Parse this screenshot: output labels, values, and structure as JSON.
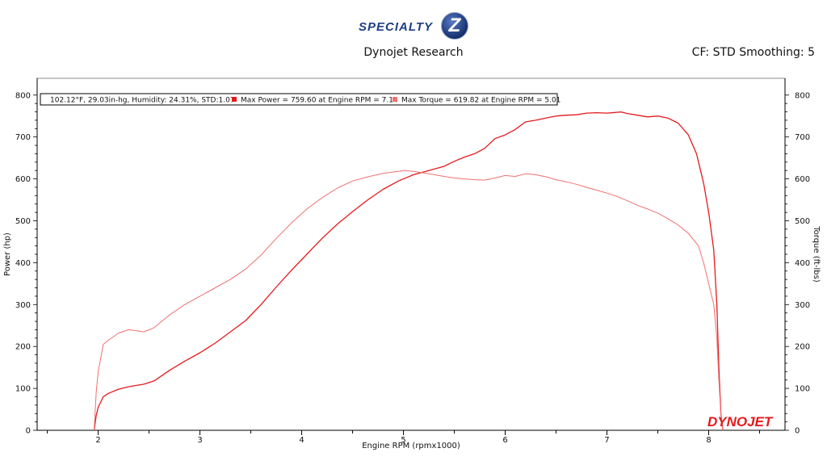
{
  "header": {
    "logo_text": "SPECIALTY",
    "logo_badge": "Z",
    "subtitle": "Dynojet Research",
    "correction": "CF: STD Smoothing: 5"
  },
  "brand": {
    "watermark": "DYNOJET"
  },
  "legend": {
    "conditions": "102.12°F, 29.03in-hg, Humidity: 24.31%, STD:1.07",
    "power_entry": "Max Power = 759.60 at Engine RPM = 7.14",
    "torque_entry": "Max Torque = 619.82 at Engine RPM = 5.01"
  },
  "colors": {
    "power": "#e41a1c",
    "torque": "#f07070",
    "axis": "#000000",
    "grid": "#000000"
  },
  "chart_data": {
    "type": "line",
    "title": "Dynojet Research",
    "xlabel": "Engine RPM (rpmx1000)",
    "ylabel": "Power (hp)",
    "y2label": "Torque (ft-lbs)",
    "xlim": [
      1.4,
      8.75
    ],
    "ylim": [
      0,
      840
    ],
    "y2lim": [
      0,
      840
    ],
    "x_ticks": [
      2,
      3,
      4,
      5,
      6,
      7,
      8
    ],
    "y_ticks": [
      0,
      100,
      200,
      300,
      400,
      500,
      600,
      700,
      800
    ],
    "grid": false,
    "legend_position": "top-left",
    "series": [
      {
        "name": "Power",
        "axis": "left",
        "x": [
          1.96,
          1.98,
          2.0,
          2.05,
          2.1,
          2.2,
          2.3,
          2.45,
          2.55,
          2.7,
          2.85,
          3.0,
          3.15,
          3.3,
          3.45,
          3.6,
          3.75,
          3.9,
          4.05,
          4.2,
          4.35,
          4.5,
          4.65,
          4.8,
          4.95,
          5.1,
          5.25,
          5.4,
          5.5,
          5.6,
          5.7,
          5.8,
          5.9,
          6.0,
          6.1,
          6.2,
          6.3,
          6.4,
          6.5,
          6.6,
          6.7,
          6.8,
          6.9,
          7.0,
          7.14,
          7.2,
          7.3,
          7.4,
          7.5,
          7.6,
          7.7,
          7.8,
          7.88,
          7.95,
          8.0,
          8.05,
          8.08,
          8.1,
          8.12,
          8.14
        ],
        "y": [
          0,
          35,
          55,
          80,
          88,
          98,
          104,
          110,
          118,
          143,
          165,
          185,
          208,
          235,
          262,
          300,
          342,
          382,
          420,
          458,
          492,
          522,
          550,
          575,
          595,
          610,
          620,
          630,
          642,
          652,
          660,
          673,
          696,
          705,
          718,
          736,
          740,
          745,
          750,
          752,
          753,
          757,
          758,
          757,
          759.6,
          756,
          752,
          748,
          750,
          745,
          733,
          705,
          660,
          590,
          520,
          430,
          300,
          150,
          40,
          0
        ]
      },
      {
        "name": "Torque",
        "axis": "right",
        "x": [
          1.96,
          1.98,
          2.0,
          2.05,
          2.1,
          2.2,
          2.3,
          2.45,
          2.55,
          2.7,
          2.85,
          3.0,
          3.15,
          3.3,
          3.45,
          3.6,
          3.75,
          3.9,
          4.05,
          4.2,
          4.35,
          4.5,
          4.65,
          4.8,
          4.95,
          5.01,
          5.1,
          5.25,
          5.4,
          5.5,
          5.6,
          5.7,
          5.8,
          5.9,
          6.0,
          6.1,
          6.2,
          6.3,
          6.4,
          6.5,
          6.6,
          6.7,
          6.8,
          6.9,
          7.0,
          7.1,
          7.2,
          7.3,
          7.4,
          7.5,
          7.6,
          7.7,
          7.8,
          7.9,
          7.95,
          8.0,
          8.05,
          8.08,
          8.1,
          8.12,
          8.14
        ],
        "y": [
          0,
          90,
          140,
          205,
          215,
          232,
          240,
          235,
          245,
          275,
          300,
          320,
          340,
          360,
          385,
          418,
          458,
          495,
          528,
          555,
          578,
          595,
          605,
          613,
          618,
          619.82,
          618,
          612,
          606,
          602,
          600,
          598,
          597,
          602,
          608,
          606,
          612,
          610,
          605,
          598,
          593,
          587,
          580,
          573,
          566,
          558,
          548,
          537,
          528,
          518,
          505,
          490,
          470,
          440,
          400,
          350,
          300,
          220,
          120,
          40,
          0
        ]
      }
    ]
  }
}
